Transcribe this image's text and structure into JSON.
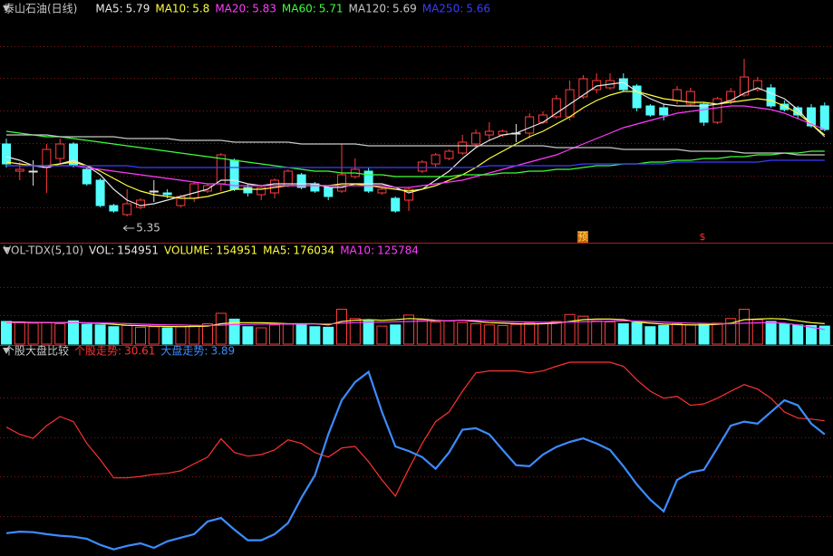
{
  "chart_data": [
    {
      "type": "candlestick",
      "title": "泰山石油(日线)",
      "up_color": "#ff3c3c",
      "down_color": "#54fcfc",
      "grid": true,
      "ylim": [
        5.22,
        6.47
      ],
      "candles": {
        "open": [
          5.75,
          5.6,
          5.6,
          5.62,
          5.67,
          5.75,
          5.61,
          5.55,
          5.41,
          5.36,
          5.4,
          5.49,
          5.48,
          5.41,
          5.45,
          5.49,
          5.53,
          5.66,
          5.51,
          5.47,
          5.48,
          5.52,
          5.58,
          5.53,
          5.51,
          5.49,
          5.57,
          5.6,
          5.48,
          5.45,
          5.44,
          5.6,
          5.64,
          5.67,
          5.7,
          5.75,
          5.8,
          5.8,
          5.81,
          5.81,
          5.87,
          5.9,
          5.9,
          6.01,
          6.05,
          6.06,
          6.11,
          6.07,
          5.96,
          5.95,
          5.99,
          5.97,
          5.97,
          5.87,
          5.99,
          6.02,
          6.05,
          6.06,
          5.97,
          5.95,
          5.95,
          5.96
        ],
        "high": [
          5.78,
          5.65,
          5.66,
          5.75,
          5.78,
          5.76,
          5.62,
          5.56,
          5.42,
          5.5,
          5.45,
          5.55,
          5.5,
          5.47,
          5.54,
          5.53,
          5.7,
          5.67,
          5.53,
          5.52,
          5.56,
          5.61,
          5.59,
          5.54,
          5.52,
          5.75,
          5.67,
          5.62,
          5.51,
          5.46,
          5.51,
          5.66,
          5.7,
          5.72,
          5.8,
          5.83,
          5.87,
          5.83,
          5.86,
          5.92,
          5.93,
          6.02,
          6.1,
          6.13,
          6.14,
          6.14,
          6.14,
          6.08,
          5.97,
          5.97,
          6.07,
          6.06,
          5.98,
          6.01,
          6.06,
          6.22,
          6.12,
          6.08,
          5.99,
          5.96,
          5.97,
          5.98
        ],
        "low": [
          5.62,
          5.55,
          5.52,
          5.48,
          5.64,
          5.62,
          5.52,
          5.4,
          5.37,
          5.35,
          5.39,
          5.43,
          5.45,
          5.4,
          5.43,
          5.48,
          5.49,
          5.49,
          5.46,
          5.44,
          5.45,
          5.51,
          5.5,
          5.48,
          5.44,
          5.48,
          5.56,
          5.48,
          5.47,
          5.37,
          5.38,
          5.59,
          5.62,
          5.66,
          5.69,
          5.73,
          5.77,
          5.79,
          5.76,
          5.78,
          5.86,
          5.89,
          5.88,
          6.0,
          6.03,
          6.05,
          6.04,
          5.93,
          5.9,
          5.88,
          5.97,
          5.96,
          5.85,
          5.86,
          5.97,
          6.01,
          6.04,
          5.95,
          5.93,
          5.89,
          5.84,
          5.82
        ],
        "close": [
          5.64,
          5.61,
          5.6,
          5.72,
          5.75,
          5.63,
          5.53,
          5.41,
          5.38,
          5.42,
          5.44,
          5.49,
          5.47,
          5.46,
          5.53,
          5.52,
          5.69,
          5.5,
          5.48,
          5.51,
          5.55,
          5.6,
          5.51,
          5.49,
          5.46,
          5.58,
          5.61,
          5.49,
          5.5,
          5.38,
          5.5,
          5.65,
          5.69,
          5.71,
          5.76,
          5.81,
          5.82,
          5.82,
          5.81,
          5.9,
          5.91,
          6.0,
          6.05,
          6.11,
          6.1,
          6.1,
          6.05,
          5.95,
          5.91,
          5.91,
          6.05,
          6.04,
          5.87,
          6.0,
          6.04,
          6.12,
          6.1,
          5.96,
          5.94,
          5.91,
          5.85,
          5.83
        ]
      },
      "low_label": "5.35",
      "markers": [
        "预",
        "$"
      ],
      "series": [
        {
          "name": "MA5:",
          "color": "#e8e8e8",
          "values": [
            5.68,
            5.66,
            5.63,
            5.62,
            5.64,
            5.66,
            5.63,
            5.58,
            5.5,
            5.44,
            5.41,
            5.42,
            5.44,
            5.46,
            5.48,
            5.5,
            5.55,
            5.55,
            5.53,
            5.52,
            5.53,
            5.53,
            5.53,
            5.53,
            5.51,
            5.51,
            5.53,
            5.53,
            5.53,
            5.51,
            5.48,
            5.5,
            5.55,
            5.6,
            5.67,
            5.73,
            5.77,
            5.8,
            5.81,
            5.84,
            5.87,
            5.92,
            5.97,
            6.02,
            6.07,
            6.08,
            6.09,
            6.04,
            6.0,
            5.97,
            5.96,
            5.96,
            5.96,
            5.97,
            5.99,
            6.03,
            6.06,
            6.03,
            6.0,
            5.94,
            5.86,
            5.79
          ]
        },
        {
          "name": "MA10:",
          "color": "#ffff3c",
          "values": [
            5.65,
            5.64,
            5.63,
            5.63,
            5.64,
            5.65,
            5.63,
            5.6,
            5.56,
            5.52,
            5.49,
            5.47,
            5.46,
            5.45,
            5.45,
            5.46,
            5.48,
            5.5,
            5.5,
            5.5,
            5.51,
            5.52,
            5.52,
            5.52,
            5.52,
            5.53,
            5.53,
            5.52,
            5.51,
            5.5,
            5.49,
            5.5,
            5.52,
            5.55,
            5.58,
            5.62,
            5.67,
            5.71,
            5.75,
            5.79,
            5.82,
            5.86,
            5.9,
            5.95,
            5.99,
            6.02,
            6.04,
            6.04,
            6.02,
            6.0,
            5.99,
            5.98,
            5.98,
            5.97,
            5.98,
            5.99,
            6.0,
            5.99,
            5.96,
            5.92,
            5.86,
            5.8
          ]
        },
        {
          "name": "MA20:",
          "color": "#ff3cff",
          "values": [
            5.63,
            5.63,
            5.63,
            5.63,
            5.63,
            5.63,
            5.62,
            5.61,
            5.6,
            5.59,
            5.58,
            5.57,
            5.56,
            5.55,
            5.54,
            5.53,
            5.53,
            5.52,
            5.52,
            5.52,
            5.52,
            5.52,
            5.52,
            5.52,
            5.52,
            5.52,
            5.52,
            5.52,
            5.52,
            5.51,
            5.51,
            5.52,
            5.53,
            5.54,
            5.55,
            5.57,
            5.59,
            5.61,
            5.63,
            5.65,
            5.67,
            5.69,
            5.72,
            5.75,
            5.78,
            5.81,
            5.84,
            5.86,
            5.88,
            5.9,
            5.92,
            5.93,
            5.94,
            5.95,
            5.96,
            5.96,
            5.95,
            5.94,
            5.92,
            5.89,
            5.86,
            5.83
          ]
        },
        {
          "name": "MA60:",
          "color": "#3cff3c",
          "values": [
            5.82,
            5.81,
            5.8,
            5.79,
            5.79,
            5.78,
            5.77,
            5.76,
            5.75,
            5.74,
            5.73,
            5.72,
            5.71,
            5.7,
            5.69,
            5.68,
            5.67,
            5.66,
            5.65,
            5.64,
            5.63,
            5.62,
            5.61,
            5.6,
            5.6,
            5.59,
            5.59,
            5.58,
            5.58,
            5.57,
            5.57,
            5.57,
            5.57,
            5.57,
            5.58,
            5.58,
            5.58,
            5.59,
            5.59,
            5.6,
            5.6,
            5.61,
            5.61,
            5.62,
            5.63,
            5.63,
            5.64,
            5.64,
            5.65,
            5.65,
            5.66,
            5.66,
            5.67,
            5.67,
            5.68,
            5.68,
            5.69,
            5.69,
            5.7,
            5.7,
            5.71,
            5.71
          ]
        },
        {
          "name": "MA120:",
          "color": "#c8c8c8",
          "values": [
            5.8,
            5.8,
            5.8,
            5.8,
            5.79,
            5.79,
            5.79,
            5.79,
            5.79,
            5.78,
            5.78,
            5.78,
            5.78,
            5.77,
            5.77,
            5.77,
            5.77,
            5.76,
            5.76,
            5.76,
            5.76,
            5.76,
            5.75,
            5.75,
            5.75,
            5.75,
            5.75,
            5.74,
            5.74,
            5.74,
            5.74,
            5.74,
            5.74,
            5.74,
            5.74,
            5.74,
            5.74,
            5.74,
            5.74,
            5.74,
            5.74,
            5.73,
            5.73,
            5.73,
            5.73,
            5.73,
            5.72,
            5.72,
            5.72,
            5.72,
            5.72,
            5.71,
            5.71,
            5.71,
            5.71,
            5.7,
            5.7,
            5.7,
            5.7,
            5.69,
            5.69,
            5.69
          ]
        },
        {
          "name": "MA250:",
          "color": "#3c3cff",
          "values": [
            5.63,
            5.63,
            5.63,
            5.63,
            5.63,
            5.63,
            5.63,
            5.63,
            5.63,
            5.63,
            5.62,
            5.62,
            5.62,
            5.62,
            5.62,
            5.62,
            5.62,
            5.62,
            5.62,
            5.62,
            5.62,
            5.62,
            5.62,
            5.62,
            5.62,
            5.62,
            5.62,
            5.62,
            5.62,
            5.62,
            5.62,
            5.62,
            5.62,
            5.62,
            5.62,
            5.62,
            5.63,
            5.63,
            5.63,
            5.63,
            5.63,
            5.63,
            5.63,
            5.64,
            5.64,
            5.64,
            5.64,
            5.64,
            5.64,
            5.64,
            5.65,
            5.65,
            5.65,
            5.65,
            5.65,
            5.65,
            5.65,
            5.66,
            5.66,
            5.66,
            5.66,
            5.66
          ]
        }
      ]
    },
    {
      "type": "bar",
      "title": "VOL-TDX(5,10)",
      "value_name": "VOL:",
      "name": "VOLUME:",
      "color": "#ffff3c",
      "grid": true,
      "ylim": [
        0,
        740000
      ],
      "values": [
        195000,
        190000,
        180000,
        185000,
        175000,
        200000,
        170000,
        165000,
        150000,
        160000,
        145000,
        150000,
        140000,
        150000,
        160000,
        175000,
        265000,
        215000,
        150000,
        140000,
        165000,
        175000,
        165000,
        150000,
        145000,
        300000,
        220000,
        200000,
        155000,
        165000,
        250000,
        210000,
        190000,
        200000,
        185000,
        175000,
        165000,
        160000,
        170000,
        180000,
        175000,
        195000,
        255000,
        240000,
        200000,
        190000,
        175000,
        185000,
        150000,
        160000,
        175000,
        165000,
        170000,
        180000,
        220000,
        300000,
        210000,
        195000,
        175000,
        165000,
        160000,
        154951
      ],
      "series": [
        {
          "name": "MA5:",
          "color": "#ffff3c",
          "values": [
            190000,
            188000,
            186000,
            184000,
            185000,
            186000,
            182000,
            178000,
            170000,
            162000,
            158000,
            154000,
            152000,
            150000,
            152000,
            155000,
            175000,
            185000,
            185000,
            185000,
            180000,
            175000,
            175000,
            175000,
            165000,
            195000,
            205000,
            210000,
            205000,
            210000,
            220000,
            215000,
            205000,
            200000,
            205000,
            195000,
            185000,
            180000,
            175000,
            172000,
            175000,
            180000,
            195000,
            210000,
            215000,
            215000,
            210000,
            190000,
            180000,
            172000,
            168000,
            165000,
            165000,
            170000,
            180000,
            210000,
            215000,
            220000,
            215000,
            200000,
            185000,
            176034
          ]
        },
        {
          "name": "MA10:",
          "color": "#ff3cff",
          "values": [
            185000,
            185000,
            185000,
            185000,
            185000,
            185000,
            184000,
            182000,
            180000,
            176000,
            172000,
            168000,
            166000,
            164000,
            162000,
            160000,
            163000,
            168000,
            170000,
            172000,
            172000,
            172000,
            172000,
            174000,
            174000,
            180000,
            185000,
            190000,
            190000,
            192000,
            195000,
            198000,
            200000,
            202000,
            205000,
            205000,
            200000,
            195000,
            192000,
            190000,
            188000,
            188000,
            190000,
            192000,
            195000,
            198000,
            200000,
            198000,
            195000,
            190000,
            185000,
            180000,
            178000,
            175000,
            175000,
            180000,
            182000,
            185000,
            180000,
            165000,
            145000,
            125784
          ]
        }
      ]
    },
    {
      "type": "line",
      "title": "个股大盘比较",
      "grid": true,
      "ylim": [
        -236,
        155
      ],
      "series": [
        {
          "name": "个股走势:",
          "color": "#ff3232",
          "values": [
            18,
            4,
            -4,
            21,
            39,
            29,
            -14,
            -46,
            -82,
            -82,
            -79,
            -75,
            -73,
            -68,
            -54,
            -41,
            -5,
            -32,
            -39,
            -36,
            -27,
            -7,
            -14,
            -32,
            -41,
            -23,
            -20,
            -50,
            -86,
            -118,
            -64,
            -14,
            29,
            48,
            89,
            125,
            129,
            129,
            129,
            125,
            129,
            138,
            146,
            146,
            146,
            146,
            138,
            111,
            89,
            75,
            79,
            61,
            64,
            75,
            89,
            102,
            93,
            75,
            48,
            36,
            34,
            30.61
          ]
        },
        {
          "name": "大盘走势:",
          "color": "#3c8cff",
          "values": [
            -191,
            -188,
            -189,
            -193,
            -196,
            -198,
            -202,
            -214,
            -223,
            -216,
            -211,
            -220,
            -207,
            -200,
            -193,
            -168,
            -161,
            -184,
            -205,
            -205,
            -193,
            -171,
            -121,
            -77,
            4,
            71,
            107,
            127,
            48,
            -20,
            -29,
            -41,
            -64,
            -32,
            13,
            16,
            4,
            -27,
            -57,
            -59,
            -36,
            -21,
            -11,
            -4,
            -14,
            -27,
            -59,
            -95,
            -125,
            -148,
            -86,
            -71,
            -66,
            -23,
            21,
            29,
            25,
            48,
            71,
            61,
            25,
            3.89
          ]
        }
      ]
    }
  ]
}
